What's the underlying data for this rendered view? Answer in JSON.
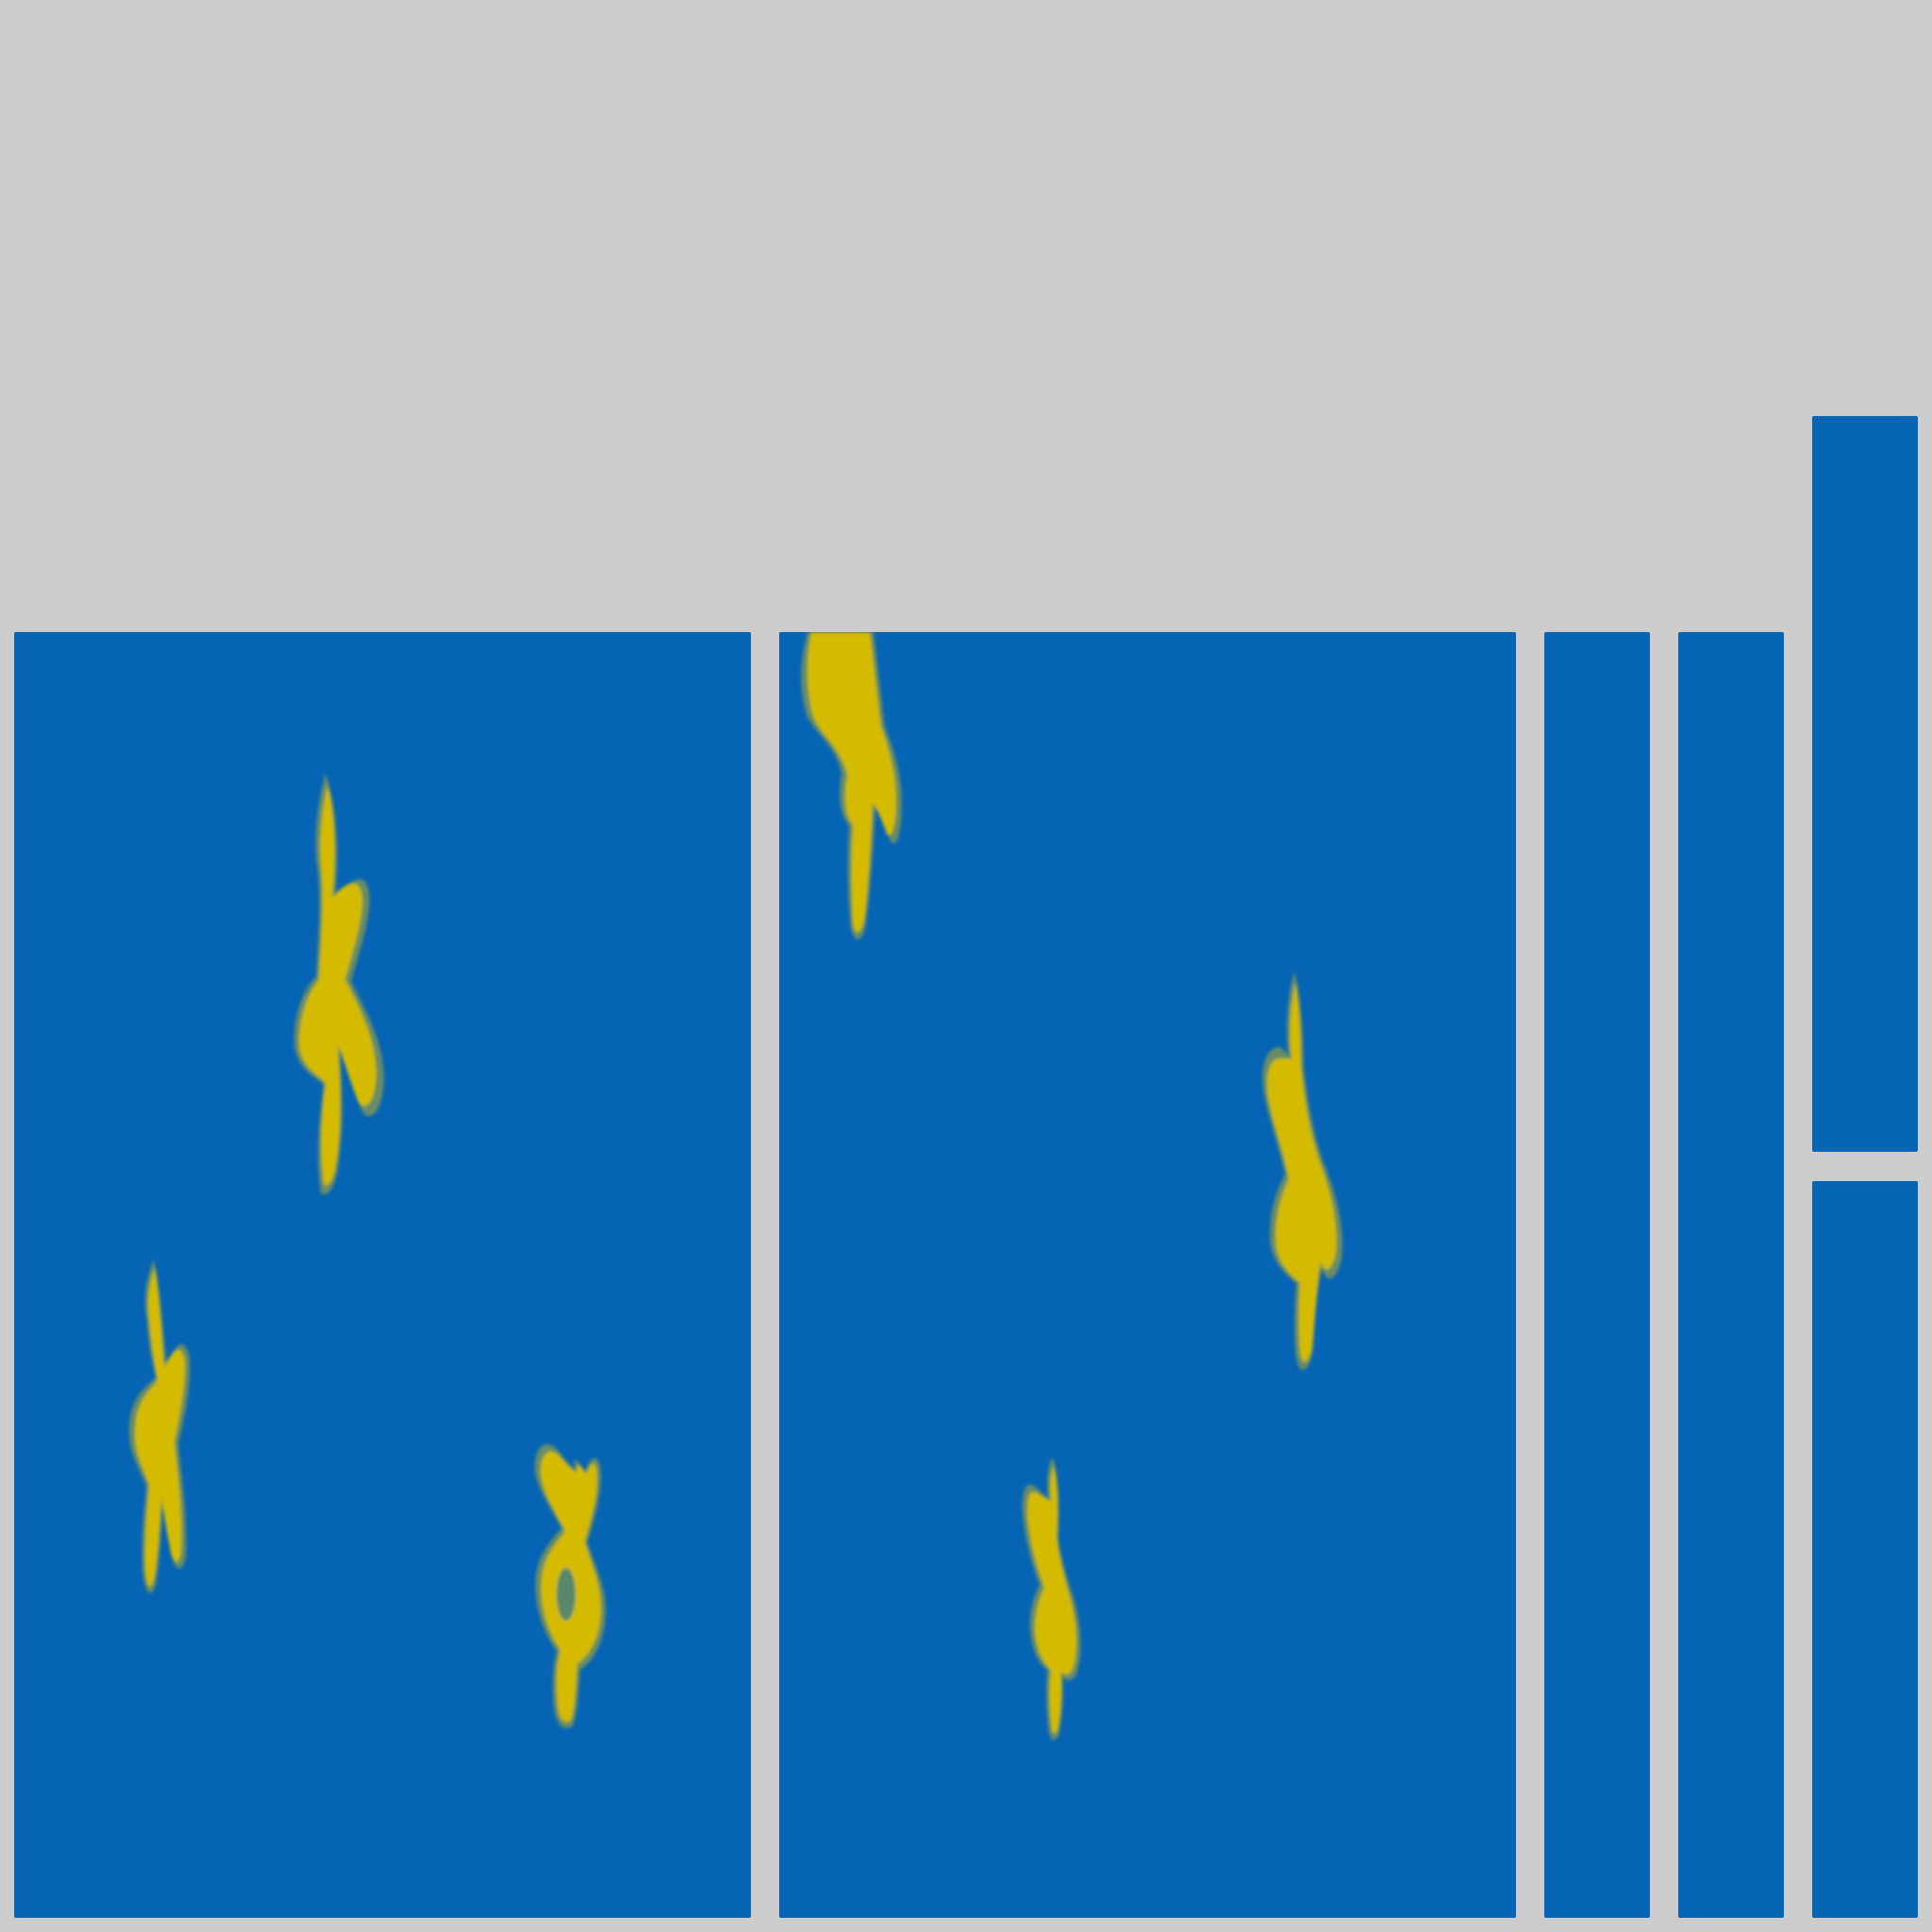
{
  "colors": {
    "background": "#cccccc",
    "panel": "#0564b4",
    "shape": "#d4bb00",
    "shape_edge": "#8a9a4e"
  },
  "panels": [
    {
      "name": "main-left",
      "shapes": 3
    },
    {
      "name": "main-center",
      "shapes": 3
    },
    {
      "name": "strip-1",
      "shapes": 0
    },
    {
      "name": "strip-2",
      "shapes": 0
    },
    {
      "name": "right-top",
      "shapes": 0
    },
    {
      "name": "right-bottom",
      "shapes": 0
    }
  ]
}
